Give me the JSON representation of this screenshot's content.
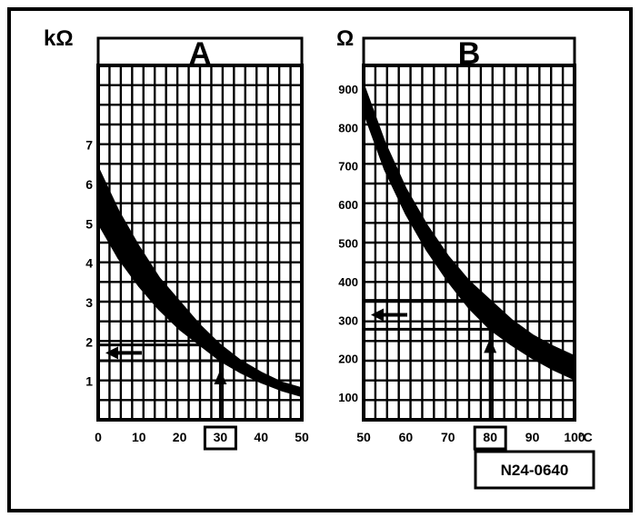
{
  "chart_data": [
    {
      "type": "line",
      "panel": "A",
      "title": "A",
      "ylabel": "kΩ",
      "xlabel": "",
      "xlim": [
        0,
        50
      ],
      "ylim": [
        0,
        9
      ],
      "x_ticks": [
        "0",
        "10",
        "20",
        "30",
        "40",
        "50"
      ],
      "y_ticks": [
        "1",
        "2",
        "3",
        "4",
        "5",
        "6",
        "7"
      ],
      "highlighted_x_tick": "30",
      "grid": true,
      "band": {
        "x": [
          0,
          5,
          10,
          15,
          20,
          25,
          30,
          35,
          40,
          45,
          50
        ],
        "upper": [
          6.4,
          5.3,
          4.4,
          3.6,
          3.0,
          2.4,
          1.9,
          1.5,
          1.2,
          0.95,
          0.8
        ],
        "lower": [
          5.0,
          4.1,
          3.4,
          2.8,
          2.3,
          1.9,
          1.5,
          1.2,
          0.95,
          0.75,
          0.6
        ]
      },
      "reading": {
        "x": 30,
        "y_upper": 1.9,
        "y_lower": 1.5
      }
    },
    {
      "type": "line",
      "panel": "B",
      "title": "B",
      "ylabel": "Ω",
      "xlabel": "°C",
      "xlim": [
        50,
        100
      ],
      "ylim": [
        40,
        960
      ],
      "x_ticks": [
        "50",
        "60",
        "70",
        "80",
        "90",
        "100"
      ],
      "x_unit": "°C",
      "y_ticks": [
        "100",
        "200",
        "300",
        "400",
        "500",
        "600",
        "700",
        "800",
        "900"
      ],
      "highlighted_x_tick": "80",
      "grid": true,
      "band": {
        "x": [
          50,
          55,
          60,
          65,
          70,
          75,
          80,
          85,
          90,
          95,
          100
        ],
        "upper": [
          910,
          760,
          640,
          545,
          465,
          400,
          350,
          300,
          260,
          230,
          205
        ],
        "lower": [
          840,
          690,
          575,
          480,
          400,
          330,
          275,
          235,
          200,
          170,
          145
        ]
      },
      "reading": {
        "x": 80,
        "y_upper": 350,
        "y_lower": 275
      }
    }
  ],
  "reference_code": "N24-0640",
  "colors": {
    "ink": "#000000",
    "paper": "#ffffff",
    "highlight": "#dddddd"
  }
}
